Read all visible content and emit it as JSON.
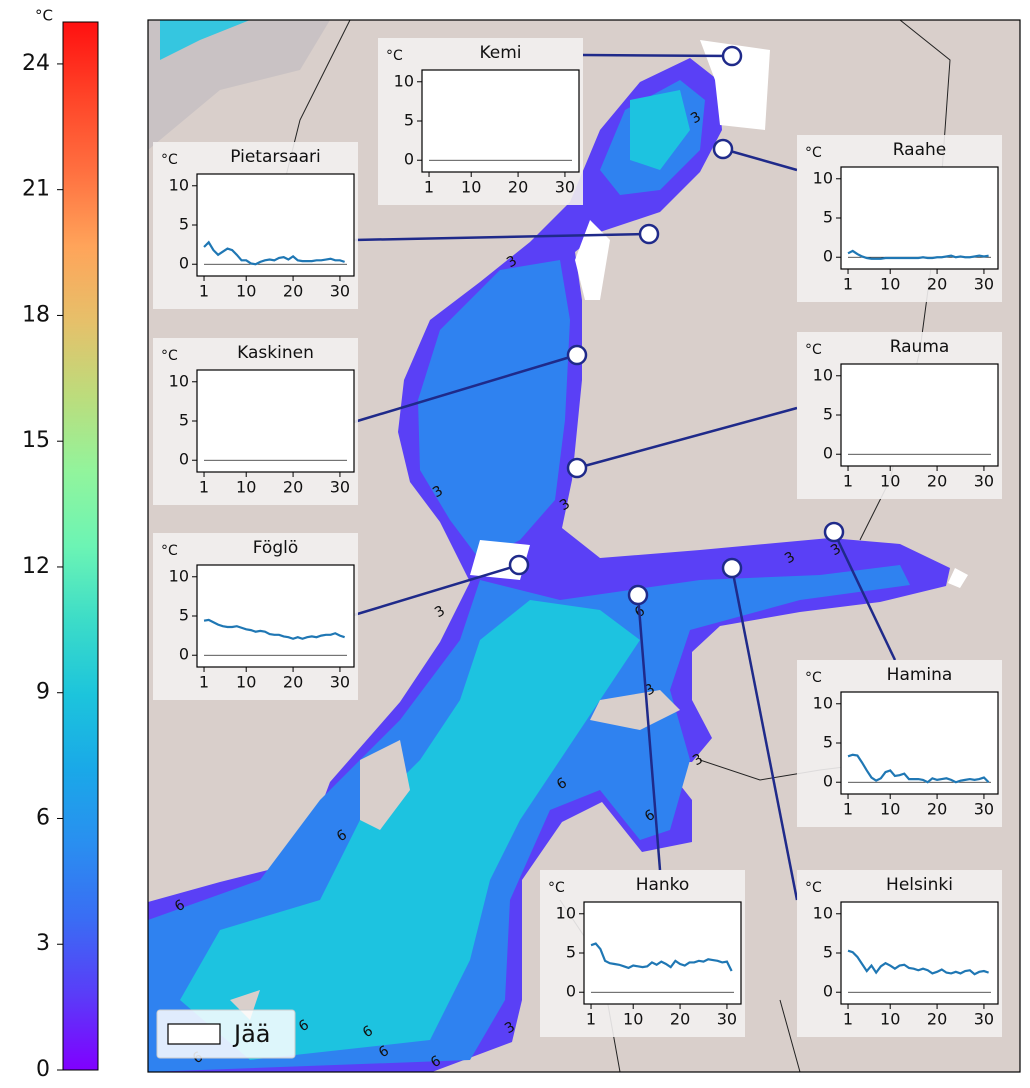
{
  "colorbar": {
    "unit": "°C",
    "lim": [
      0,
      25
    ],
    "ticks": [
      0,
      3,
      6,
      9,
      12,
      15,
      18,
      21,
      24
    ],
    "colors": [
      "#8000ff",
      "#5a3cf8",
      "#3a6cf4",
      "#2a8ef0",
      "#1aa8e8",
      "#1cc4dc",
      "#3cdcc8",
      "#6cf4b4",
      "#92f49c",
      "#bcdc7c",
      "#e6c06a",
      "#ffa45a",
      "#ff7040",
      "#ff4428",
      "#ff1010"
    ]
  },
  "map": {
    "contour_levels": [
      3,
      6
    ],
    "legend": {
      "label": "Jää",
      "color": "#ffffff"
    }
  },
  "chart_data": [
    {
      "type": "line",
      "title": "Kemi",
      "ylabel": "°C",
      "xlim": [
        -0.5,
        33
      ],
      "ylim": [
        -1.5,
        11.5
      ],
      "xticks": [
        1,
        10,
        20,
        30
      ],
      "yticks": [
        0,
        5,
        10
      ],
      "hline": 0,
      "color": "#1f77b4",
      "x": [],
      "values": []
    },
    {
      "type": "line",
      "title": "Pietarsaari",
      "ylabel": "°C",
      "xlim": [
        -0.5,
        33
      ],
      "ylim": [
        -1.5,
        11.5
      ],
      "xticks": [
        1,
        10,
        20,
        30
      ],
      "yticks": [
        0,
        5,
        10
      ],
      "hline": 0,
      "color": "#1f77b4",
      "x": [
        1,
        2,
        3,
        4,
        5,
        6,
        7,
        8,
        9,
        10,
        11,
        12,
        13,
        14,
        15,
        16,
        17,
        18,
        19,
        20,
        21,
        22,
        23,
        24,
        25,
        26,
        27,
        28,
        29,
        30,
        31
      ],
      "values": [
        2.2,
        2.8,
        1.8,
        1.2,
        1.6,
        2.0,
        1.8,
        1.2,
        0.5,
        0.5,
        0.1,
        0.0,
        0.3,
        0.5,
        0.6,
        0.5,
        0.8,
        0.9,
        0.6,
        1.0,
        0.5,
        0.4,
        0.4,
        0.4,
        0.5,
        0.5,
        0.6,
        0.7,
        0.5,
        0.5,
        0.3
      ]
    },
    {
      "type": "line",
      "title": "Raahe",
      "ylabel": "°C",
      "xlim": [
        -0.5,
        33
      ],
      "ylim": [
        -1.5,
        11.5
      ],
      "xticks": [
        1,
        10,
        20,
        30
      ],
      "yticks": [
        0,
        5,
        10
      ],
      "hline": 0,
      "color": "#1f77b4",
      "x": [
        1,
        2,
        3,
        4,
        5,
        6,
        7,
        8,
        9,
        10,
        11,
        12,
        13,
        14,
        15,
        16,
        17,
        18,
        19,
        20,
        21,
        22,
        23,
        24,
        25,
        26,
        27,
        28,
        29,
        30,
        31
      ],
      "values": [
        0.5,
        0.8,
        0.4,
        0.1,
        -0.1,
        -0.2,
        -0.2,
        -0.2,
        -0.1,
        -0.1,
        -0.1,
        -0.1,
        -0.1,
        -0.1,
        -0.1,
        -0.1,
        0.0,
        -0.1,
        -0.1,
        0.0,
        0.0,
        0.1,
        0.2,
        0.0,
        0.1,
        0.0,
        0.0,
        0.1,
        0.2,
        0.1,
        0.2
      ]
    },
    {
      "type": "line",
      "title": "Kaskinen",
      "ylabel": "°C",
      "xlim": [
        -0.5,
        33
      ],
      "ylim": [
        -1.5,
        11.5
      ],
      "xticks": [
        1,
        10,
        20,
        30
      ],
      "yticks": [
        0,
        5,
        10
      ],
      "hline": 0,
      "color": "#1f77b4",
      "x": [],
      "values": []
    },
    {
      "type": "line",
      "title": "Rauma",
      "ylabel": "°C",
      "xlim": [
        -0.5,
        33
      ],
      "ylim": [
        -1.5,
        11.5
      ],
      "xticks": [
        1,
        10,
        20,
        30
      ],
      "yticks": [
        0,
        5,
        10
      ],
      "hline": 0,
      "color": "#1f77b4",
      "x": [],
      "values": []
    },
    {
      "type": "line",
      "title": "Föglö",
      "ylabel": "°C",
      "xlim": [
        -0.5,
        33
      ],
      "ylim": [
        -1.5,
        11.5
      ],
      "xticks": [
        1,
        10,
        20,
        30
      ],
      "yticks": [
        0,
        5,
        10
      ],
      "hline": 0,
      "color": "#1f77b4",
      "x": [
        1,
        2,
        3,
        4,
        5,
        6,
        7,
        8,
        9,
        10,
        11,
        12,
        13,
        14,
        15,
        16,
        17,
        18,
        19,
        20,
        21,
        22,
        23,
        24,
        25,
        26,
        27,
        28,
        29,
        30,
        31
      ],
      "values": [
        4.4,
        4.5,
        4.2,
        3.9,
        3.7,
        3.6,
        3.6,
        3.7,
        3.5,
        3.3,
        3.2,
        3.0,
        3.1,
        3.0,
        2.7,
        2.6,
        2.6,
        2.4,
        2.3,
        2.1,
        2.3,
        2.1,
        2.3,
        2.4,
        2.3,
        2.5,
        2.6,
        2.6,
        2.8,
        2.5,
        2.3
      ]
    },
    {
      "type": "line",
      "title": "Hamina",
      "ylabel": "°C",
      "xlim": [
        -0.5,
        33
      ],
      "ylim": [
        -1.5,
        11.5
      ],
      "xticks": [
        1,
        10,
        20,
        30
      ],
      "yticks": [
        0,
        5,
        10
      ],
      "hline": 0,
      "color": "#1f77b4",
      "x": [
        1,
        2,
        3,
        4,
        5,
        6,
        7,
        8,
        9,
        10,
        11,
        12,
        13,
        14,
        15,
        16,
        17,
        18,
        19,
        20,
        21,
        22,
        23,
        24,
        25,
        26,
        27,
        28,
        29,
        30,
        31
      ],
      "values": [
        3.3,
        3.5,
        3.4,
        2.5,
        1.5,
        0.6,
        0.2,
        0.5,
        1.3,
        1.5,
        0.8,
        0.9,
        1.1,
        0.4,
        0.4,
        0.4,
        0.3,
        0.0,
        0.5,
        0.3,
        0.4,
        0.5,
        0.3,
        0.0,
        0.2,
        0.3,
        0.4,
        0.3,
        0.4,
        0.6,
        0.0
      ]
    },
    {
      "type": "line",
      "title": "Hanko",
      "ylabel": "°C",
      "xlim": [
        -0.5,
        33
      ],
      "ylim": [
        -1.5,
        11.5
      ],
      "xticks": [
        1,
        10,
        20,
        30
      ],
      "yticks": [
        0,
        5,
        10
      ],
      "hline": 0,
      "color": "#1f77b4",
      "x": [
        1,
        2,
        3,
        4,
        5,
        6,
        7,
        8,
        9,
        10,
        11,
        12,
        13,
        14,
        15,
        16,
        17,
        18,
        19,
        20,
        21,
        22,
        23,
        24,
        25,
        26,
        27,
        28,
        29,
        30,
        31
      ],
      "values": [
        6.0,
        6.2,
        5.5,
        4.0,
        3.7,
        3.6,
        3.5,
        3.3,
        3.1,
        3.4,
        3.3,
        3.2,
        3.3,
        3.8,
        3.5,
        3.9,
        3.6,
        3.2,
        4.0,
        3.6,
        3.4,
        3.8,
        3.8,
        4.0,
        3.9,
        4.2,
        4.1,
        4.0,
        3.8,
        3.9,
        2.7
      ]
    },
    {
      "type": "line",
      "title": "Helsinki",
      "ylabel": "°C",
      "xlim": [
        -0.5,
        33
      ],
      "ylim": [
        -1.5,
        11.5
      ],
      "xticks": [
        1,
        10,
        20,
        30
      ],
      "yticks": [
        0,
        5,
        10
      ],
      "hline": 0,
      "color": "#1f77b4",
      "x": [
        1,
        2,
        3,
        4,
        5,
        6,
        7,
        8,
        9,
        10,
        11,
        12,
        13,
        14,
        15,
        16,
        17,
        18,
        19,
        20,
        21,
        22,
        23,
        24,
        25,
        26,
        27,
        28,
        29,
        30,
        31
      ],
      "values": [
        5.3,
        5.1,
        4.5,
        3.6,
        2.7,
        3.4,
        2.5,
        3.3,
        3.7,
        3.4,
        3.0,
        3.4,
        3.5,
        3.1,
        3.0,
        2.8,
        3.0,
        2.8,
        2.4,
        2.6,
        2.9,
        2.5,
        2.4,
        2.6,
        2.4,
        2.7,
        2.8,
        2.3,
        2.6,
        2.7,
        2.5
      ]
    }
  ]
}
